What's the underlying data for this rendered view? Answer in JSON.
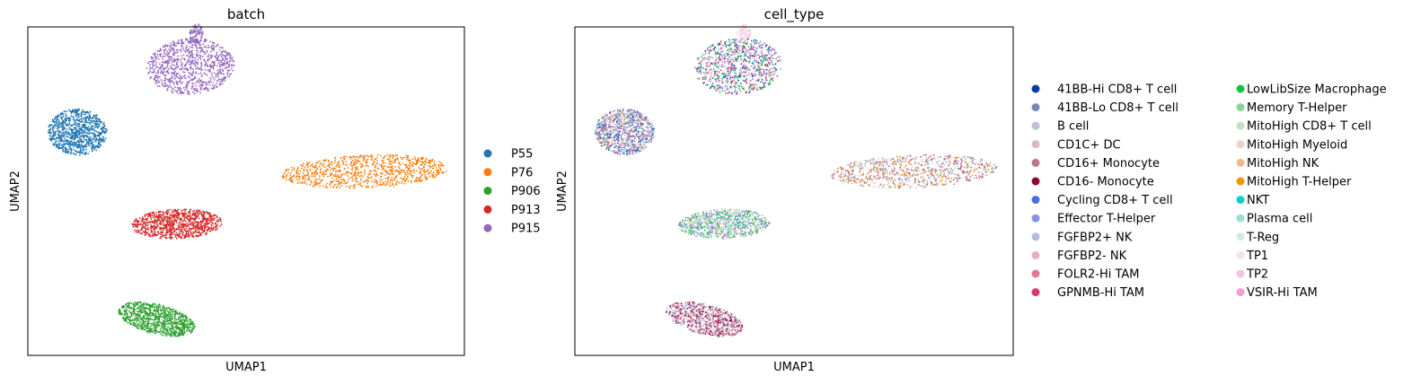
{
  "chart_data": [
    {
      "type": "scatter",
      "title": "batch",
      "xlabel": "UMAP1",
      "ylabel": "UMAP2",
      "grid": false,
      "legend_position": "right",
      "series": [
        {
          "name": "P55",
          "color": "#1f77b4",
          "cluster": {
            "cx": -8.5,
            "cy": 3.6,
            "rx": 1.5,
            "ry": 1.4,
            "tilt": -12
          }
        },
        {
          "name": "P76",
          "color": "#ff7f0e",
          "cluster": {
            "cx": 6.0,
            "cy": 1.2,
            "rx": 4.2,
            "ry": 1.0,
            "tilt": 3
          }
        },
        {
          "name": "P906",
          "color": "#2ca02c",
          "cluster": {
            "cx": -4.5,
            "cy": -7.8,
            "rx": 2.0,
            "ry": 0.9,
            "tilt": -18
          }
        },
        {
          "name": "P913",
          "color": "#d62728",
          "cluster": {
            "cx": -3.5,
            "cy": -2.0,
            "rx": 2.3,
            "ry": 0.9,
            "tilt": 3
          }
        },
        {
          "name": "P915",
          "color": "#9467bd",
          "cluster": {
            "cx": -2.8,
            "cy": 7.6,
            "rx": 2.2,
            "ry": 1.7,
            "tilt": 8
          }
        }
      ]
    },
    {
      "type": "scatter",
      "title": "cell_type",
      "xlabel": "UMAP1",
      "ylabel": "UMAP2",
      "grid": false,
      "legend_position": "right",
      "legend_columns": 2,
      "series": [
        {
          "name": "41BB-Hi CD8+ T cell",
          "color": "#023fa5"
        },
        {
          "name": "41BB-Lo CD8+ T cell",
          "color": "#7d87b9"
        },
        {
          "name": "B cell",
          "color": "#bec1d4"
        },
        {
          "name": "CD1C+ DC",
          "color": "#d6bcc0"
        },
        {
          "name": "CD16+ Monocyte",
          "color": "#bb7784"
        },
        {
          "name": "CD16- Monocyte",
          "color": "#8e063b"
        },
        {
          "name": "Cycling CD8+ T cell",
          "color": "#4a6fe3"
        },
        {
          "name": "Effector T-Helper",
          "color": "#8595e1"
        },
        {
          "name": "FGFBP2+ NK",
          "color": "#b5bbe3"
        },
        {
          "name": "FGFBP2- NK",
          "color": "#e6afb9"
        },
        {
          "name": "FOLR2-Hi TAM",
          "color": "#e07b91"
        },
        {
          "name": "GPNMB-Hi TAM",
          "color": "#d33f6a"
        },
        {
          "name": "LowLibSize Macrophage",
          "color": "#11c638"
        },
        {
          "name": "Memory T-Helper",
          "color": "#8dd593"
        },
        {
          "name": "MitoHigh CD8+ T cell",
          "color": "#c6dec7"
        },
        {
          "name": "MitoHigh Myeloid",
          "color": "#ead3c6"
        },
        {
          "name": "MitoHigh NK",
          "color": "#f0b98d"
        },
        {
          "name": "MitoHigh T-Helper",
          "color": "#ef9708"
        },
        {
          "name": "NKT",
          "color": "#0fcfc0"
        },
        {
          "name": "Plasma cell",
          "color": "#9cded6"
        },
        {
          "name": "T-Reg",
          "color": "#d5eae7"
        },
        {
          "name": "TP1",
          "color": "#f3e1eb"
        },
        {
          "name": "TP2",
          "color": "#f6c4e1"
        },
        {
          "name": "VSIR-Hi TAM",
          "color": "#f79cd4"
        }
      ]
    }
  ]
}
